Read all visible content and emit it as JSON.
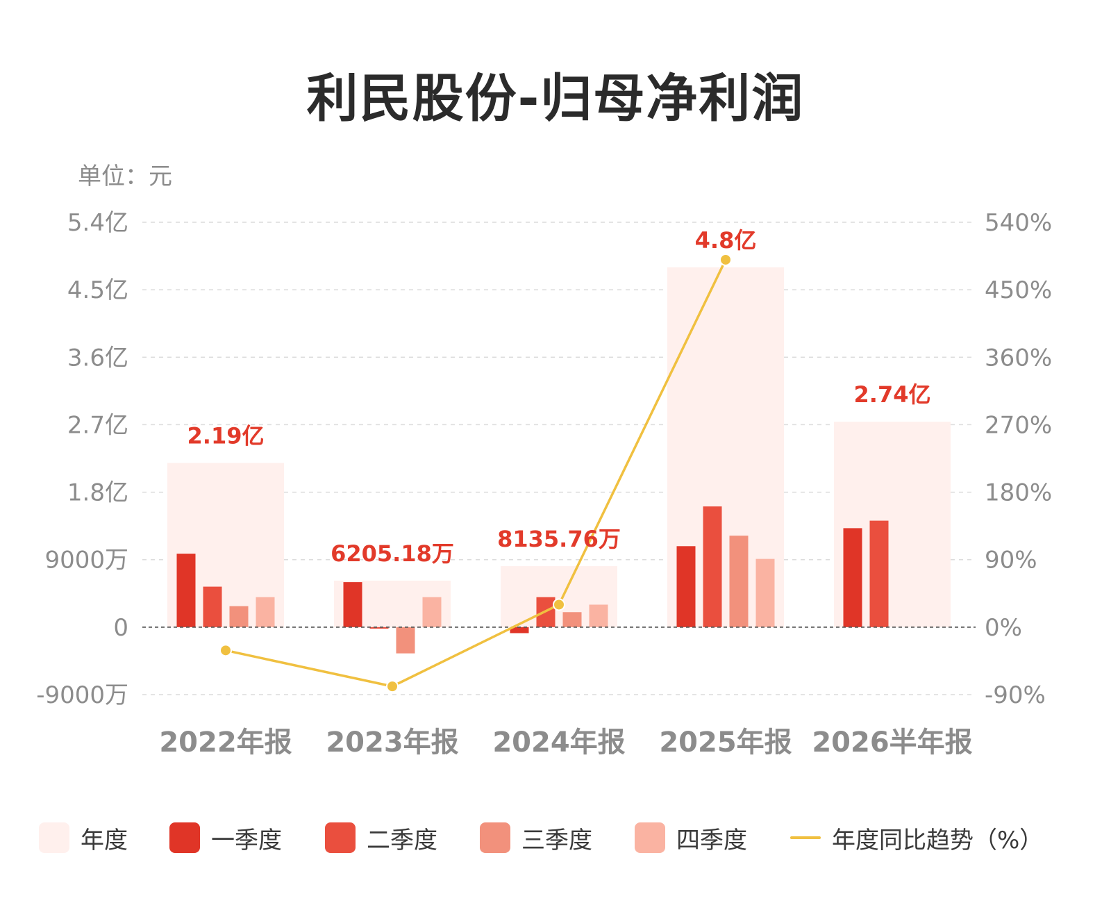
{
  "title": "利民股份-归母净利润",
  "unit": "单位：元",
  "chart_data": {
    "type": "bar",
    "categories": [
      "2022年报",
      "2023年报",
      "2024年报",
      "2025年报",
      "2026半年报"
    ],
    "annual_labels": [
      "2.19亿",
      "6205.18万",
      "8135.76万",
      "4.8亿",
      "2.74亿"
    ],
    "annual": [
      219000000,
      62051800,
      81357600,
      480000000,
      274000000
    ],
    "series": [
      {
        "name": "一季度",
        "color": "#e03527",
        "values": [
          98000000,
          60000000,
          -8000000,
          108000000,
          132000000
        ]
      },
      {
        "name": "二季度",
        "color": "#ea4f3e",
        "values": [
          54000000,
          -2000000,
          40000000,
          161000000,
          142000000
        ]
      },
      {
        "name": "三季度",
        "color": "#f2917c",
        "values": [
          28000000,
          -35000000,
          20000000,
          122000000,
          null
        ]
      },
      {
        "name": "四季度",
        "color": "#fab3a2",
        "values": [
          40000000,
          40000000,
          30000000,
          91000000,
          null
        ]
      }
    ],
    "annual_series": {
      "name": "年度",
      "color": "#fff0ed"
    },
    "yoy_series": {
      "name": "年度同比趋势（%）",
      "color": "#f0c040",
      "values": [
        -31,
        -79,
        30,
        490,
        null
      ]
    },
    "y_left_ticks": [
      "-9000万",
      "0",
      "9000万",
      "1.8亿",
      "2.7亿",
      "3.6亿",
      "4.5亿",
      "5.4亿"
    ],
    "y_left_range": [
      -90000000,
      540000000
    ],
    "y_right_ticks": [
      "-90%",
      "0%",
      "90%",
      "180%",
      "270%",
      "360%",
      "450%",
      "540%"
    ],
    "y_right_range": [
      -90,
      540
    ],
    "grid": true,
    "legend_position": "bottom"
  },
  "legend": {
    "items": [
      {
        "label": "年度",
        "color": "#fff0ed",
        "kind": "box"
      },
      {
        "label": "一季度",
        "color": "#e03527",
        "kind": "box"
      },
      {
        "label": "二季度",
        "color": "#ea4f3e",
        "kind": "box"
      },
      {
        "label": "三季度",
        "color": "#f2917c",
        "kind": "box"
      },
      {
        "label": "四季度",
        "color": "#fab3a2",
        "kind": "box"
      },
      {
        "label": "年度同比趋势（%）",
        "color": "#f0c040",
        "kind": "line"
      }
    ]
  }
}
